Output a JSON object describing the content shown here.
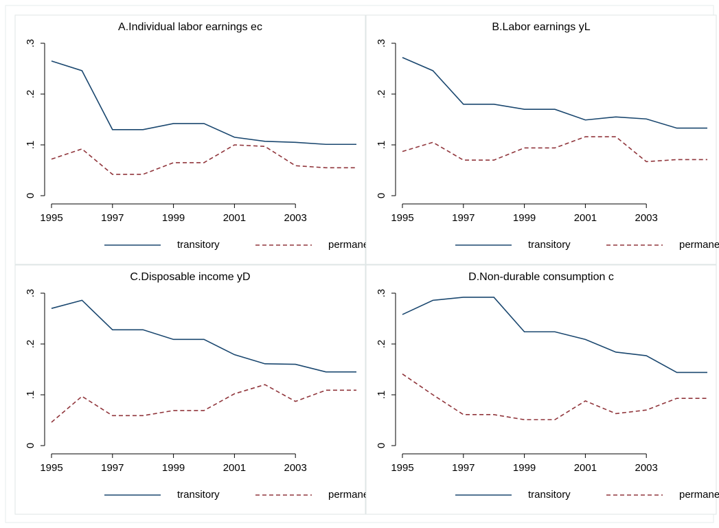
{
  "chart_data": [
    {
      "type": "line",
      "title": "A.Individual labor earnings ec",
      "x": [
        1995,
        1996,
        1997,
        1998,
        1999,
        2000,
        2001,
        2002,
        2003,
        2004,
        2005
      ],
      "series": [
        {
          "name": "transitory",
          "color": "#1a476f",
          "dash": false,
          "values": [
            0.265,
            0.246,
            0.13,
            0.13,
            0.142,
            0.142,
            0.115,
            0.107,
            0.105,
            0.101,
            0.101
          ]
        },
        {
          "name": "permanent",
          "color": "#90353b",
          "dash": true,
          "values": [
            0.072,
            0.092,
            0.042,
            0.042,
            0.065,
            0.065,
            0.1,
            0.097,
            0.059,
            0.055,
            0.055
          ]
        }
      ],
      "xlim": [
        1995,
        2005
      ],
      "xticks": [
        1995,
        1997,
        1999,
        2001,
        2003
      ],
      "ylim": [
        0,
        0.3
      ],
      "yticks": [
        0,
        {
          "value": 0.1,
          "label": ".1"
        },
        {
          "value": 0.2,
          "label": ".2"
        },
        {
          "value": 0.3,
          "label": ".3"
        }
      ],
      "legend": "bottom"
    },
    {
      "type": "line",
      "title": "B.Labor earnings yL",
      "x": [
        1995,
        1996,
        1997,
        1998,
        1999,
        2000,
        2001,
        2002,
        2003,
        2004,
        2005
      ],
      "series": [
        {
          "name": "transitory",
          "color": "#1a476f",
          "dash": false,
          "values": [
            0.272,
            0.246,
            0.18,
            0.18,
            0.17,
            0.17,
            0.149,
            0.155,
            0.151,
            0.133,
            0.133
          ]
        },
        {
          "name": "permanent",
          "color": "#90353b",
          "dash": true,
          "values": [
            0.087,
            0.105,
            0.07,
            0.07,
            0.094,
            0.094,
            0.116,
            0.116,
            0.067,
            0.071,
            0.071
          ]
        }
      ],
      "xlim": [
        1995,
        2005
      ],
      "xticks": [
        1995,
        1997,
        1999,
        2001,
        2003
      ],
      "ylim": [
        0,
        0.3
      ],
      "yticks": [
        0,
        {
          "value": 0.1,
          "label": ".1"
        },
        {
          "value": 0.2,
          "label": ".2"
        },
        {
          "value": 0.3,
          "label": ".3"
        }
      ],
      "legend": "bottom"
    },
    {
      "type": "line",
      "title": "C.Disposable income yD",
      "x": [
        1995,
        1996,
        1997,
        1998,
        1999,
        2000,
        2001,
        2002,
        2003,
        2004,
        2005
      ],
      "series": [
        {
          "name": "transitory",
          "color": "#1a476f",
          "dash": false,
          "values": [
            0.27,
            0.286,
            0.228,
            0.228,
            0.209,
            0.209,
            0.179,
            0.161,
            0.16,
            0.145,
            0.145
          ]
        },
        {
          "name": "permanent",
          "color": "#90353b",
          "dash": true,
          "values": [
            0.046,
            0.097,
            0.059,
            0.059,
            0.069,
            0.069,
            0.102,
            0.12,
            0.087,
            0.109,
            0.109
          ]
        }
      ],
      "xlim": [
        1995,
        2005
      ],
      "xticks": [
        1995,
        1997,
        1999,
        2001,
        2003
      ],
      "ylim": [
        0,
        0.3
      ],
      "yticks": [
        0,
        {
          "value": 0.1,
          "label": ".1"
        },
        {
          "value": 0.2,
          "label": ".2"
        },
        {
          "value": 0.3,
          "label": ".3"
        }
      ],
      "legend": "bottom"
    },
    {
      "type": "line",
      "title": "D.Non-durable consumption c",
      "x": [
        1995,
        1996,
        1997,
        1998,
        1999,
        2000,
        2001,
        2002,
        2003,
        2004,
        2005
      ],
      "series": [
        {
          "name": "transitory",
          "color": "#1a476f",
          "dash": false,
          "values": [
            0.258,
            0.286,
            0.292,
            0.292,
            0.224,
            0.224,
            0.209,
            0.184,
            0.177,
            0.144,
            0.144
          ]
        },
        {
          "name": "permanent",
          "color": "#90353b",
          "dash": true,
          "values": [
            0.141,
            0.1,
            0.061,
            0.061,
            0.051,
            0.051,
            0.088,
            0.063,
            0.07,
            0.093,
            0.093
          ]
        }
      ],
      "xlim": [
        1995,
        2005
      ],
      "xticks": [
        1995,
        1997,
        1999,
        2001,
        2003
      ],
      "ylim": [
        0,
        0.3
      ],
      "yticks": [
        0,
        {
          "value": 0.1,
          "label": ".1"
        },
        {
          "value": 0.2,
          "label": ".2"
        },
        {
          "value": 0.3,
          "label": ".3"
        }
      ],
      "legend": "bottom"
    }
  ]
}
